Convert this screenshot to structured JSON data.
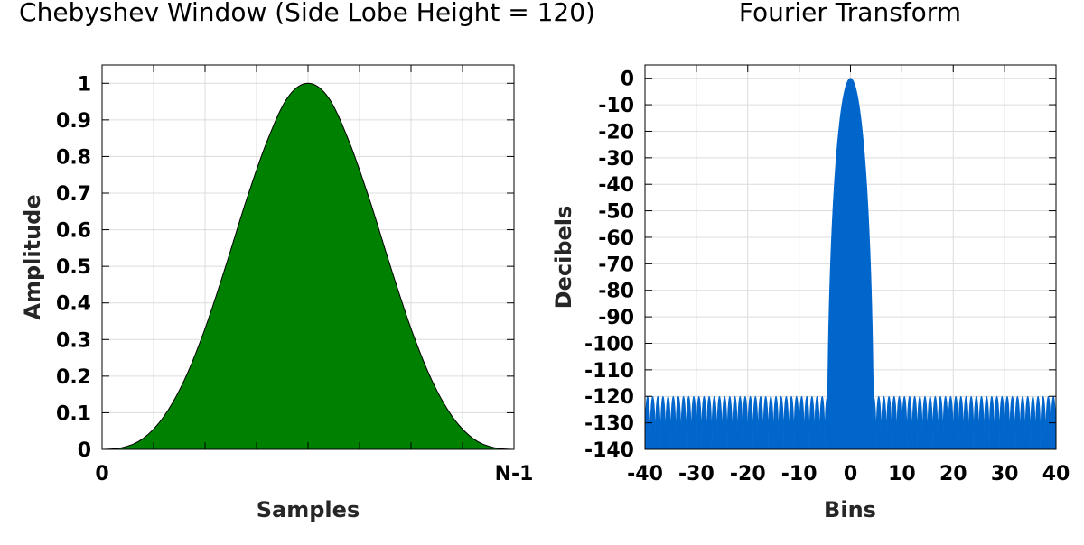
{
  "chart_data": [
    {
      "type": "area",
      "title": "Chebyshev Window (Side Lobe Height = 120)",
      "xlabel": "Samples",
      "ylabel": "Amplitude",
      "xtick_labels": [
        "0",
        "N-1"
      ],
      "yticks": [
        0,
        0.1,
        0.2,
        0.3,
        0.4,
        0.5,
        0.6,
        0.7,
        0.8,
        0.9,
        1
      ],
      "ytick_labels": [
        "0",
        "0.1",
        "0.2",
        "0.3",
        "0.4",
        "0.5",
        "0.6",
        "0.7",
        "0.8",
        "0.9",
        "1"
      ],
      "xlim": [
        0,
        1
      ],
      "ylim": [
        0,
        1.05
      ],
      "x": [
        0,
        0.05,
        0.1,
        0.15,
        0.2,
        0.25,
        0.3,
        0.35,
        0.4,
        0.45,
        0.5,
        0.55,
        0.6,
        0.65,
        0.7,
        0.75,
        0.8,
        0.85,
        0.9,
        0.95,
        1
      ],
      "y": [
        0.0,
        0.005,
        0.03,
        0.09,
        0.19,
        0.33,
        0.5,
        0.68,
        0.84,
        0.96,
        1.0,
        0.96,
        0.84,
        0.68,
        0.5,
        0.33,
        0.19,
        0.09,
        0.03,
        0.005,
        0.0
      ],
      "grid": true,
      "colors": {
        "fill": "#008000",
        "line": "#000000"
      }
    },
    {
      "type": "area",
      "title": "Fourier Transform",
      "xlabel": "Bins",
      "ylabel": "Decibels",
      "xticks": [
        -40,
        -30,
        -20,
        -10,
        0,
        10,
        20,
        30,
        40
      ],
      "xtick_labels": [
        "-40",
        "-30",
        "-20",
        "-10",
        "0",
        "10",
        "20",
        "30",
        "40"
      ],
      "yticks": [
        0,
        -10,
        -20,
        -30,
        -40,
        -50,
        -60,
        -70,
        -80,
        -90,
        -100,
        -110,
        -120,
        -130,
        -140
      ],
      "ytick_labels": [
        "0",
        "-10",
        "-20",
        "-30",
        "-40",
        "-50",
        "-60",
        "-70",
        "-80",
        "-90",
        "-100",
        "-110",
        "-120",
        "-130",
        "-140"
      ],
      "xlim": [
        -40,
        40
      ],
      "ylim": [
        -140,
        5
      ],
      "main_lobe_half_width_bins": 4.5,
      "side_lobe_level_db": -120,
      "grid": true,
      "colors": {
        "fill": "#0066cc"
      }
    }
  ]
}
